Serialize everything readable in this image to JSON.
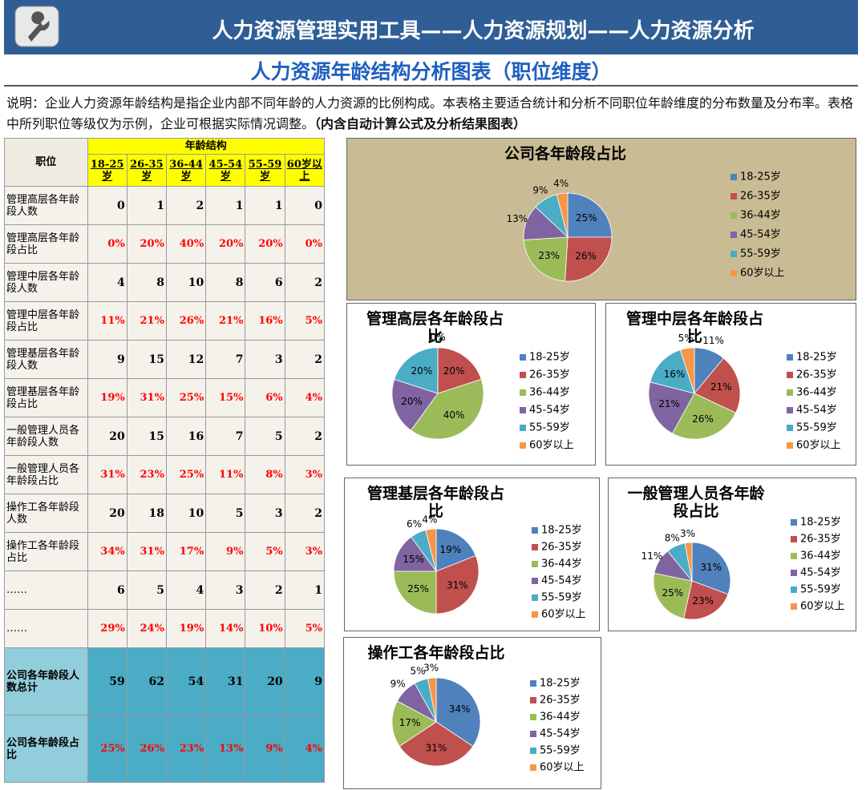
{
  "header": {
    "title": "人力资源管理实用工具——人力资源规划——人力资源分析",
    "subtitle": "人力资源年龄结构分析图表（职位维度）"
  },
  "description": {
    "text": "说明：企业人力资源年龄结构是指企业内部不同年龄的人力资源的比例构成。本表格主要适合统计和分析不同职位年龄维度的分布数量及分布率。表格中所列职位等级仅为示例，企业可根据实际情况调整。",
    "note": "（内含自动计算公式及分析结果图表）"
  },
  "table": {
    "row_header": "职位",
    "group_header": "年龄结构",
    "columns": [
      "18-25岁",
      "26-35岁",
      "36-44岁",
      "45-54岁",
      "55-59岁",
      "60岁以上"
    ],
    "rows": [
      {
        "label": "管理高层各年龄段人数",
        "cells": [
          0,
          1,
          2,
          1,
          1,
          0
        ]
      },
      {
        "label": "管理高层各年龄段占比",
        "cells": [
          "0%",
          "20%",
          "40%",
          "20%",
          "20%",
          "0%"
        ]
      },
      {
        "label": "管理中层各年龄段人数",
        "cells": [
          4,
          8,
          10,
          8,
          6,
          2
        ]
      },
      {
        "label": "管理中层各年龄段占比",
        "cells": [
          "11%",
          "21%",
          "26%",
          "21%",
          "16%",
          "5%"
        ]
      },
      {
        "label": "管理基层各年龄段人数",
        "cells": [
          9,
          15,
          12,
          7,
          3,
          2
        ]
      },
      {
        "label": "管理基层各年龄段占比",
        "cells": [
          "19%",
          "31%",
          "25%",
          "15%",
          "6%",
          "4%"
        ]
      },
      {
        "label": "一般管理人员各年龄段人数",
        "cells": [
          20,
          15,
          16,
          7,
          5,
          2
        ]
      },
      {
        "label": "一般管理人员各年龄段占比",
        "cells": [
          "31%",
          "23%",
          "25%",
          "11%",
          "8%",
          "3%"
        ]
      },
      {
        "label": "操作工各年龄段人数",
        "cells": [
          20,
          18,
          10,
          5,
          3,
          2
        ]
      },
      {
        "label": "操作工各年龄段占比",
        "cells": [
          "34%",
          "31%",
          "17%",
          "9%",
          "5%",
          "3%"
        ]
      },
      {
        "label": "……",
        "cells": [
          6,
          5,
          4,
          3,
          2,
          1
        ]
      },
      {
        "label": "……",
        "cells": [
          "29%",
          "24%",
          "19%",
          "14%",
          "10%",
          "5%"
        ]
      },
      {
        "label": "公司各年龄段人数总计",
        "cells": [
          59,
          62,
          54,
          31,
          20,
          9
        ]
      },
      {
        "label": "公司各年龄段占比",
        "cells": [
          "25%",
          "26%",
          "23%",
          "13%",
          "9%",
          "4%"
        ]
      }
    ]
  },
  "chart_data": [
    {
      "type": "pie",
      "title": "公司各年龄段占比",
      "categories": [
        "18-25岁",
        "26-35岁",
        "36-44岁",
        "45-54岁",
        "55-59岁",
        "60岁以上"
      ],
      "values": [
        25,
        26,
        23,
        13,
        9,
        4
      ],
      "value_labels": [
        "25%",
        "26%",
        "23%",
        "13%",
        "9%",
        "4%"
      ],
      "colors": [
        "#4f81bd",
        "#c0504d",
        "#9bbb59",
        "#8064a2",
        "#4bacc6",
        "#f79646"
      ]
    },
    {
      "type": "pie",
      "title": "管理高层各年龄段占比",
      "categories": [
        "18-25岁",
        "26-35岁",
        "36-44岁",
        "45-54岁",
        "55-59岁",
        "60岁以上"
      ],
      "values": [
        0,
        20,
        40,
        20,
        20,
        0
      ],
      "value_labels": [
        "0%",
        "20%",
        "40%",
        "20%",
        "20%",
        "0%"
      ],
      "colors": [
        "#4f81bd",
        "#c0504d",
        "#9bbb59",
        "#8064a2",
        "#4bacc6",
        "#f79646"
      ]
    },
    {
      "type": "pie",
      "title": "管理中层各年龄段占比",
      "categories": [
        "18-25岁",
        "26-35岁",
        "36-44岁",
        "45-54岁",
        "55-59岁",
        "60岁以上"
      ],
      "values": [
        11,
        21,
        26,
        21,
        16,
        5
      ],
      "value_labels": [
        "11%",
        "21%",
        "26%",
        "21%",
        "16%",
        "5%"
      ],
      "colors": [
        "#4f81bd",
        "#c0504d",
        "#9bbb59",
        "#8064a2",
        "#4bacc6",
        "#f79646"
      ]
    },
    {
      "type": "pie",
      "title": "管理基层各年龄段占比",
      "categories": [
        "18-25岁",
        "26-35岁",
        "36-44岁",
        "45-54岁",
        "55-59岁",
        "60岁以上"
      ],
      "values": [
        19,
        31,
        25,
        15,
        6,
        4
      ],
      "value_labels": [
        "19%",
        "31%",
        "25%",
        "15%",
        "6%",
        "4%"
      ],
      "colors": [
        "#4f81bd",
        "#c0504d",
        "#9bbb59",
        "#8064a2",
        "#4bacc6",
        "#f79646"
      ]
    },
    {
      "type": "pie",
      "title": "一般管理人员各年龄段占比",
      "categories": [
        "18-25岁",
        "26-35岁",
        "36-44岁",
        "45-54岁",
        "55-59岁",
        "60岁以上"
      ],
      "values": [
        31,
        23,
        25,
        11,
        8,
        3
      ],
      "value_labels": [
        "31%",
        "23%",
        "25%",
        "11%",
        "8%",
        "3%"
      ],
      "colors": [
        "#4f81bd",
        "#c0504d",
        "#9bbb59",
        "#8064a2",
        "#4bacc6",
        "#f79646"
      ]
    },
    {
      "type": "pie",
      "title": "操作工各年龄段占比",
      "categories": [
        "18-25岁",
        "26-35岁",
        "36-44岁",
        "45-54岁",
        "55-59岁",
        "60岁以上"
      ],
      "values": [
        34,
        31,
        17,
        9,
        5,
        3
      ],
      "value_labels": [
        "34%",
        "31%",
        "17%",
        "9%",
        "5%",
        "3%"
      ],
      "colors": [
        "#4f81bd",
        "#c0504d",
        "#9bbb59",
        "#8064a2",
        "#4bacc6",
        "#f79646"
      ]
    }
  ]
}
